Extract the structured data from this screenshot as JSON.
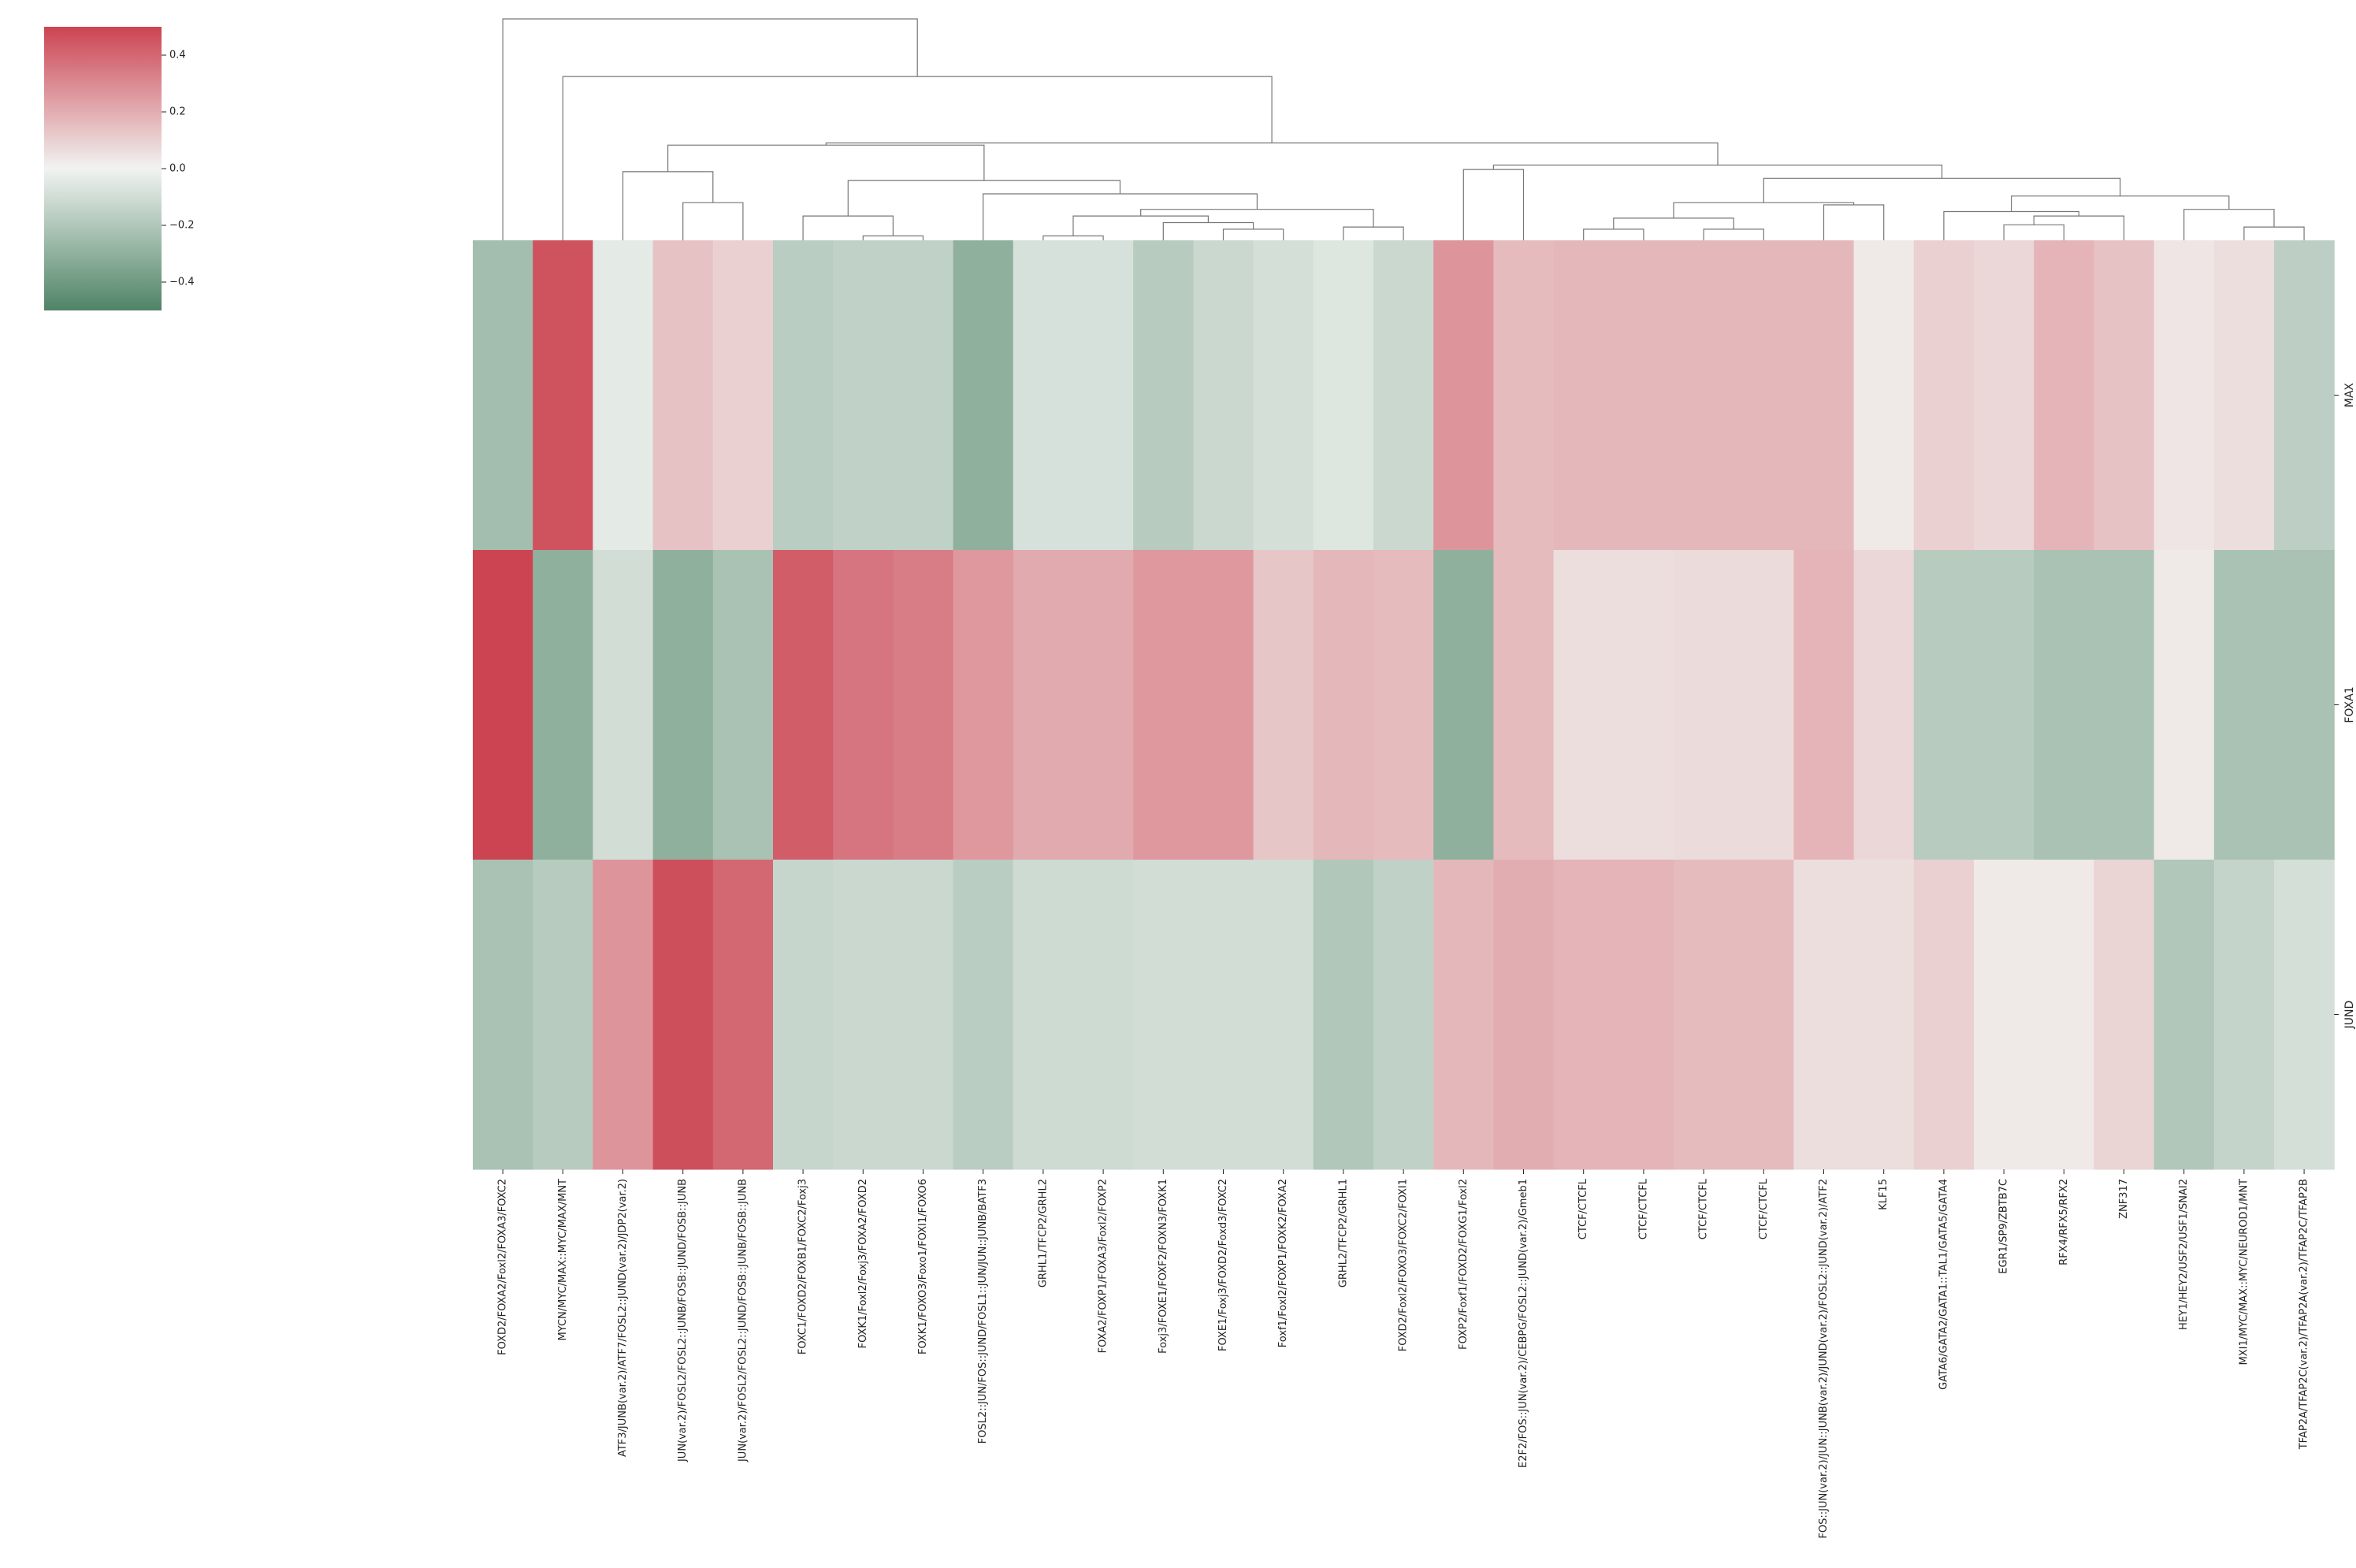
{
  "chart_data": {
    "type": "heatmap",
    "rows": [
      "MAX",
      "FOXA1",
      "JUND"
    ],
    "columns": [
      "FOXD2/FOXA2/Foxl2/FOXA3/FOXC2",
      "MYCN/MYC/MAX::MYC/MAX/MNT",
      "ATF3/JUNB(var.2)/ATF7/FOSL2::JUND(var.2)/JDP2(var.2)",
      "JUN(var.2)/FOSL2/FOSL2::JUNB/FOSB::JUND/FOSB::JUNB",
      "JUN(var.2)/FOSL2/FOSL2::JUND/FOSB::JUNB/FOSB::JUNB",
      "FOXC1/FOXD2/FOXB1/FOXC2/Foxj3",
      "FOXK1/Foxl2/Foxj3/FOXA2/FOXD2",
      "FOXK1/FOXO3/Foxo1/FOXI1/FOXO6",
      "FOSL2::JUN/FOS::JUND/FOSL1::JUN/JUN::JUNB/BATF3",
      "GRHL1/TFCP2/GRHL2",
      "FOXA2/FOXP1/FOXA3/Foxl2/FOXP2",
      "Foxj3/FOXE1/FOXF2/FOXN3/FOXK1",
      "FOXE1/Foxj3/FOXD2/Foxd3/FOXC2",
      "Foxf1/Foxl2/FOXP1/FOXK2/FOXA2",
      "GRHL2/TFCP2/GRHL1",
      "FOXD2/Foxl2/FOXO3/FOXC2/FOXI1",
      "FOXP2/Foxf1/FOXD2/FOXG1/Foxl2",
      "E2F2/FOS::JUN(var.2)/CEBPG/FOSL2::JUND(var.2)/Gmeb1",
      "CTCF/CTCFL",
      "CTCF/CTCFL",
      "CTCF/CTCFL",
      "CTCF/CTCFL",
      "FOS::JUN(var.2)/JUN::JUNB(var.2)/JUND(var.2)/FOSL2::JUND(var.2)/ATF2",
      "KLF15",
      "GATA6/GATA2/GATA1::TAL1/GATA5/GATA4",
      "EGR1/SP9/ZBTB7C",
      "RFX4/RFX5/RFX2",
      "ZNF317",
      "HEY1/HEY2/USF2/USF1/SNAI2",
      "MXI1/MYC/MAX::MYC/NEUROD1/MNT",
      "TFAP2A/TFAP2C(var.2)/TFAP2A(var.2)/TFAP2C/TFAP2B"
    ],
    "values": [
      [
        -0.24,
        0.46,
        -0.04,
        0.14,
        0.1,
        -0.17,
        -0.15,
        -0.15,
        -0.3,
        -0.08,
        -0.08,
        -0.18,
        -0.12,
        -0.09,
        -0.06,
        -0.12,
        0.27,
        0.16,
        0.17,
        0.17,
        0.17,
        0.17,
        0.17,
        0.03,
        0.1,
        0.08,
        0.18,
        0.14,
        0.04,
        0.06,
        -0.16
      ],
      [
        0.5,
        -0.3,
        -0.1,
        -0.3,
        -0.22,
        0.43,
        0.36,
        0.34,
        0.26,
        0.21,
        0.21,
        0.26,
        0.26,
        0.13,
        0.17,
        0.16,
        -0.3,
        0.16,
        0.06,
        0.06,
        0.07,
        0.07,
        0.18,
        0.08,
        -0.18,
        -0.18,
        -0.22,
        -0.22,
        0.03,
        -0.22,
        -0.22
      ],
      [
        -0.22,
        -0.18,
        0.27,
        0.47,
        0.4,
        -0.13,
        -0.12,
        -0.12,
        -0.17,
        -0.11,
        -0.11,
        -0.1,
        -0.1,
        -0.1,
        -0.2,
        -0.15,
        0.17,
        0.2,
        0.18,
        0.18,
        0.16,
        0.16,
        0.06,
        0.06,
        0.1,
        0.03,
        0.03,
        0.09,
        -0.2,
        -0.14,
        -0.09
      ]
    ],
    "colorbar": {
      "min": -0.5,
      "max": 0.5,
      "ticks": [
        0.4,
        0.2,
        0.0,
        -0.2,
        -0.4
      ],
      "tick_labels": [
        "0.4",
        "0.2",
        "0.0",
        "−0.2",
        "−0.4"
      ]
    },
    "colors": {
      "negative": "#4f8466",
      "center": "#f1f3f1",
      "positive": "#cc4452"
    },
    "column_dendrogram": [
      [
        29,
        30,
        0.06
      ],
      [
        28,
        31,
        0.14
      ],
      [
        25,
        26,
        0.07
      ],
      [
        27,
        33,
        0.11
      ],
      [
        24,
        34,
        0.13
      ],
      [
        32,
        35,
        0.2
      ],
      [
        18,
        19,
        0.05
      ],
      [
        20,
        21,
        0.05
      ],
      [
        37,
        38,
        0.1
      ],
      [
        22,
        23,
        0.16
      ],
      [
        39,
        40,
        0.17
      ],
      [
        36,
        41,
        0.28
      ],
      [
        16,
        17,
        0.32
      ],
      [
        42,
        43,
        0.34
      ],
      [
        14,
        15,
        0.06
      ],
      [
        9,
        10,
        0.02
      ],
      [
        12,
        13,
        0.05
      ],
      [
        11,
        47,
        0.08
      ],
      [
        46,
        48,
        0.11
      ],
      [
        45,
        49,
        0.14
      ],
      [
        8,
        50,
        0.21
      ],
      [
        6,
        7,
        0.02
      ],
      [
        5,
        52,
        0.11
      ],
      [
        51,
        53,
        0.27
      ],
      [
        3,
        4,
        0.17
      ],
      [
        2,
        55,
        0.31
      ],
      [
        54,
        56,
        0.43
      ],
      [
        44,
        57,
        0.44
      ],
      [
        1,
        58,
        0.74
      ],
      [
        0,
        59,
        1.0
      ]
    ]
  }
}
